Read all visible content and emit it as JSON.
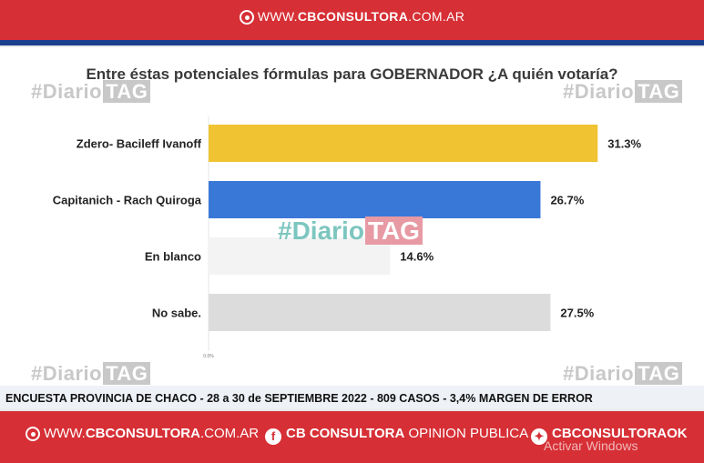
{
  "header": {
    "brand_web": "WWW.",
    "brand_name": "CBCONSULTORA",
    "brand_domain": ".COM.AR"
  },
  "watermark": {
    "hash": "#Diario",
    "tag": "TAG"
  },
  "chart_data": {
    "type": "bar",
    "orientation": "horizontal",
    "title": "Entre éstas potenciales fórmulas para GOBERNADOR ¿A quién votaría?",
    "categories": [
      "Zdero- Bacileff Ivanoff",
      "Capitanich - Rach Quiroga",
      "En blanco",
      "No sabe."
    ],
    "values": [
      31.3,
      26.7,
      14.6,
      27.5
    ],
    "value_labels": [
      "31.3%",
      "26.7%",
      "14.6%",
      "27.5%"
    ],
    "colors": [
      "#f0c332",
      "#3a78d8",
      "#f3f3f3",
      "#dcdcdc"
    ],
    "x_tick_label": "0.0%",
    "xlim": [
      0,
      35
    ],
    "grid": false,
    "legend": "none"
  },
  "footer": {
    "survey_text": "ENCUESTA PROVINCIA DE CHACO - 28 a 30 de SEPTIEMBRE 2022 - 809 CASOS - 3,4% MARGEN DE ERROR"
  },
  "bottom": {
    "web_prefix": "WWW.",
    "web_name": "CBCONSULTORA",
    "web_domain": ".COM.AR",
    "fb_icon": "facebook-icon",
    "fb_name": "CB CONSULTORA",
    "fb_suffix": " OPINION PUBLICA",
    "tw_icon": "twitter-icon",
    "tw_name": "CBCONSULTORAOK",
    "windows_notice": "Activar Windows"
  }
}
